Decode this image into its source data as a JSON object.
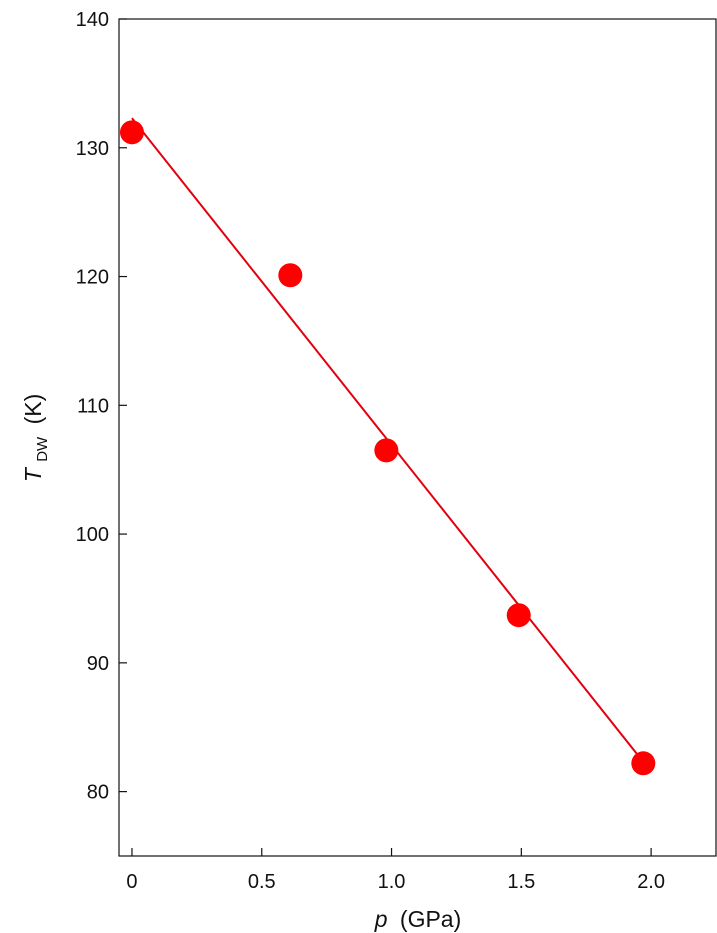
{
  "chart_data": {
    "type": "scatter",
    "xlabel": "p",
    "xlabel_unit": "(GPa)",
    "ylabel": "T",
    "ylabel_subscript": "DW",
    "ylabel_unit": "(K)",
    "xlim": [
      -0.05,
      2.25
    ],
    "ylim": [
      75,
      140
    ],
    "x_ticks": [
      0,
      0.5,
      1.0,
      1.5,
      2.0
    ],
    "x_tick_labels": [
      "0",
      "0.5",
      "1.0",
      "1.5",
      "2.0"
    ],
    "y_ticks": [
      80,
      90,
      100,
      110,
      120,
      130,
      140
    ],
    "y_tick_labels": [
      "80",
      "90",
      "100",
      "110",
      "120",
      "130",
      "140"
    ],
    "grid": false,
    "series": [
      {
        "points": [
          {
            "x": 0.0,
            "y": 131.2
          },
          {
            "x": 0.61,
            "y": 120.1
          },
          {
            "x": 0.98,
            "y": 106.5
          },
          {
            "x": 1.49,
            "y": 93.7
          },
          {
            "x": 1.97,
            "y": 82.2
          }
        ]
      }
    ],
    "fit_line": {
      "x": [
        0.0,
        1.97
      ],
      "y": [
        132.3,
        82.3
      ]
    },
    "colors": {
      "marker": "#ff0000",
      "line": "#e3000f",
      "axis": "#111111"
    }
  }
}
